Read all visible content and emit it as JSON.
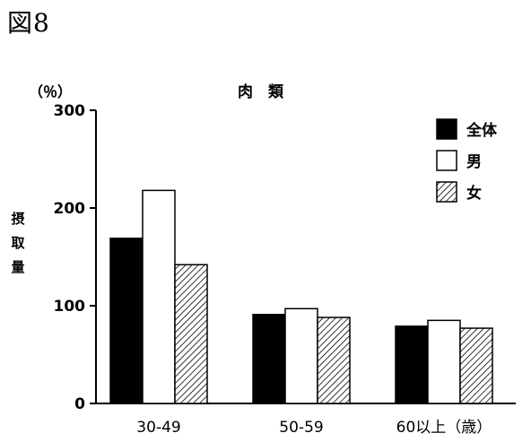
{
  "figure_label": "図8",
  "chart_data": {
    "type": "bar",
    "title": "肉　類",
    "unit": "（％）",
    "ylabel": "摂取量",
    "xlabel": "",
    "categories": [
      "30-49",
      "50-59",
      "60以上（歳）"
    ],
    "series": [
      {
        "name": "全体",
        "values": [
          169,
          91,
          79
        ],
        "fill": "solid"
      },
      {
        "name": "男",
        "values": [
          218,
          97,
          85
        ],
        "fill": "white"
      },
      {
        "name": "女",
        "values": [
          142,
          88,
          77
        ],
        "fill": "hatch"
      }
    ],
    "ylim": [
      0,
      300
    ],
    "yticks": [
      0,
      100,
      200,
      300
    ],
    "grid": false,
    "legend_position": "top-right",
    "colors": {
      "solid": "#000000",
      "white": "#ffffff",
      "stroke": "#000000"
    }
  }
}
